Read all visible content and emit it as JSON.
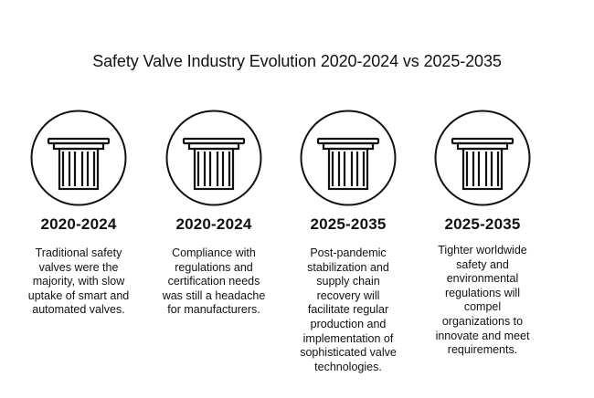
{
  "title": "Safety Valve Industry Evolution 2020-2024 vs 2025-2035",
  "columns": [
    {
      "icon": "pillar-icon",
      "period": "2020-2024",
      "description": "Traditional safety\nvalves were the\nmajority, with slow\nuptake of smart and\nautomated valves."
    },
    {
      "icon": "pillar-icon",
      "period": "2020-2024",
      "description": "Compliance with\nregulations and\ncertification needs\nwas still a headache\nfor manufacturers."
    },
    {
      "icon": "pillar-icon",
      "period": "2025-2035",
      "description": "Post-pandemic\nstabilization and\nsupply chain\nrecovery will\nfacilitate regular\nproduction and\nimplementation of\nsophisticated valve\ntechnologies."
    },
    {
      "icon": "pillar-icon",
      "period": "2025-2035",
      "description": "Tighter worldwide\nsafety and\nenvironmental\nregulations will\ncompel\norganizations to\ninnovate and meet\nrequirements."
    }
  ]
}
